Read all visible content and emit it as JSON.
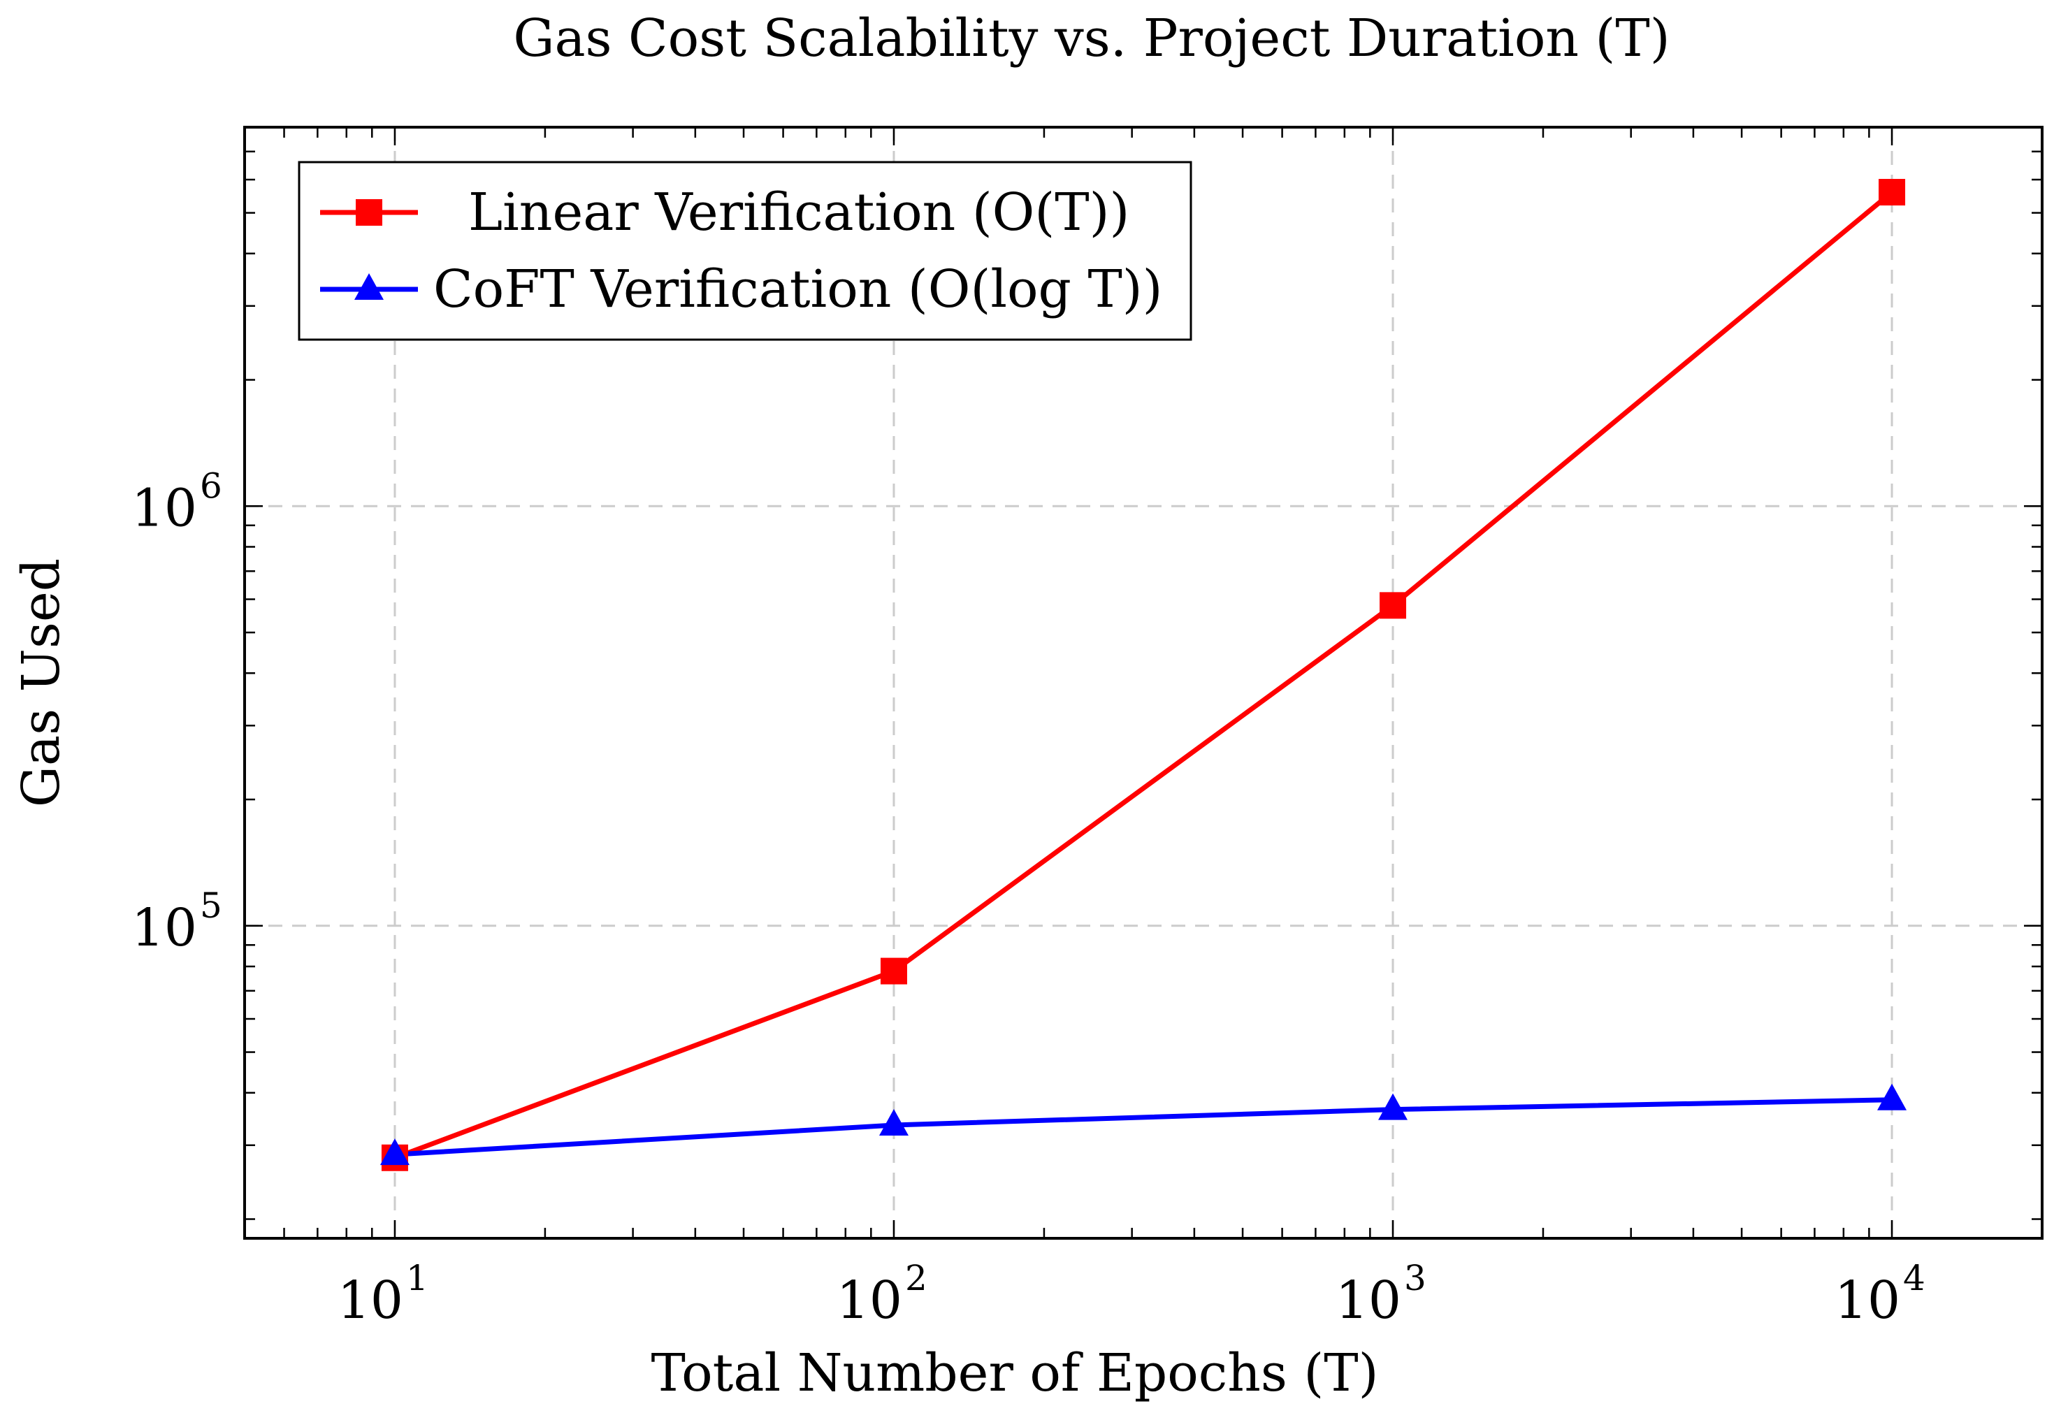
{
  "chart_data": {
    "type": "line",
    "title": "Gas Cost Scalability vs. Project Duration (T)",
    "xlabel": "Total Number of Epochs (T)",
    "ylabel": "Gas Used",
    "x_scale": "log",
    "y_scale": "log",
    "xlim": [
      5,
      20000
    ],
    "ylim": [
      18000,
      8000000
    ],
    "x_ticks": [
      {
        "base": "10",
        "exp": "1",
        "value": 10
      },
      {
        "base": "10",
        "exp": "2",
        "value": 100
      },
      {
        "base": "10",
        "exp": "3",
        "value": 1000
      },
      {
        "base": "10",
        "exp": "4",
        "value": 10000
      }
    ],
    "y_ticks": [
      {
        "base": "10",
        "exp": "5",
        "value": 100000
      },
      {
        "base": "10",
        "exp": "6",
        "value": 1000000
      }
    ],
    "grid": true,
    "legend_position": "top-left",
    "series": [
      {
        "name": "Linear Verification (O(T))",
        "color": "#ff0000",
        "marker": "square",
        "x": [
          10,
          100,
          1000,
          10000
        ],
        "y": [
          28000,
          78000,
          580000,
          5600000
        ]
      },
      {
        "name": "CoFT Verification (O(log T))",
        "color": "#0000ff",
        "marker": "triangle",
        "x": [
          10,
          100,
          1000,
          10000
        ],
        "y": [
          28500,
          33500,
          36500,
          38500
        ]
      }
    ]
  }
}
